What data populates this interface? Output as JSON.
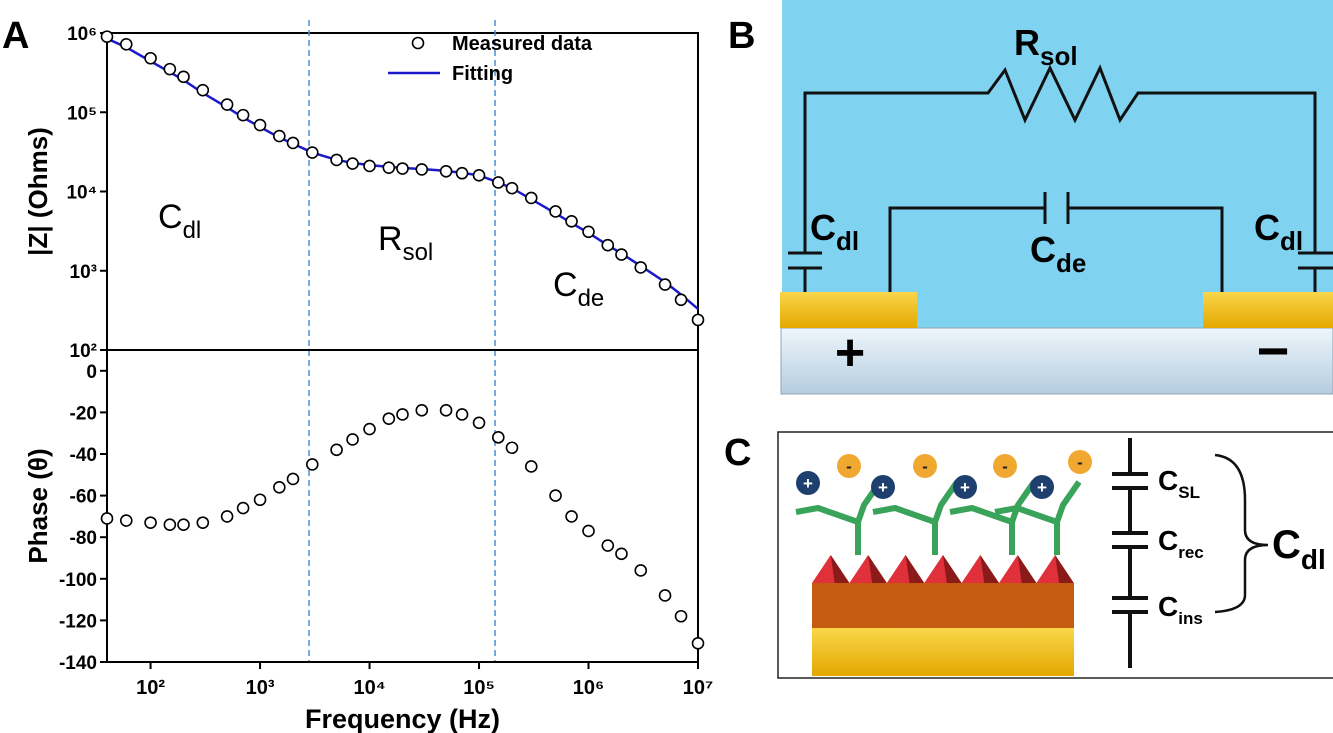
{
  "panel_labels": [
    "A",
    "B",
    "C"
  ],
  "chart_data": [
    {
      "type": "line",
      "xscale": "log",
      "yscale": "log",
      "ylabel": "|Z| (Ohms)",
      "xlim": [
        40,
        10000000
      ],
      "ylim": [
        100,
        1000000
      ],
      "yticks": [
        {
          "value": 100,
          "label": "10²"
        },
        {
          "value": 1000,
          "label": "10³"
        },
        {
          "value": 10000,
          "label": "10⁴"
        },
        {
          "value": 100000,
          "label": "10⁵"
        },
        {
          "value": 1000000,
          "label": "10⁶"
        }
      ],
      "x": [
        40,
        60,
        100,
        150,
        200,
        300,
        500,
        700,
        1000,
        1500,
        2000,
        3000,
        5000,
        7000,
        10000,
        15000,
        20000,
        30000,
        50000,
        70000,
        100000,
        150000,
        200000,
        300000,
        500000,
        700000,
        1000000,
        1500000,
        2000000,
        3000000,
        5000000,
        7000000,
        10000000
      ],
      "series": [
        {
          "name": "Measured data",
          "mode": "markers",
          "color": "#000000",
          "values": [
            900000,
            720000,
            480000,
            350000,
            280000,
            190000,
            125000,
            92000,
            69000,
            50000,
            41000,
            31000,
            25000,
            22500,
            21000,
            20000,
            19500,
            19000,
            18000,
            17000,
            16000,
            13000,
            11000,
            8300,
            5600,
            4200,
            3100,
            2100,
            1600,
            1100,
            670,
            430,
            240
          ]
        },
        {
          "name": "Fitting",
          "mode": "lines",
          "color": "#1a1acc",
          "values": [
            850000,
            660000,
            440000,
            320000,
            255000,
            175000,
            115000,
            86000,
            65000,
            48000,
            40000,
            31000,
            25000,
            23000,
            21500,
            20500,
            19800,
            19200,
            18200,
            17200,
            16000,
            13000,
            11000,
            8000,
            5300,
            4000,
            3000,
            2100,
            1650,
            1150,
            720,
            500,
            330
          ]
        }
      ],
      "vlines": [
        2800,
        140000
      ],
      "annotations": [
        {
          "text": "C",
          "sub": "dl"
        },
        {
          "text": "R",
          "sub": "sol"
        },
        {
          "text": "C",
          "sub": "de"
        }
      ]
    },
    {
      "type": "line",
      "xscale": "log",
      "xlabel": "Frequency (Hz)",
      "ylabel": "Phase (θ)",
      "xlim": [
        40,
        10000000
      ],
      "ylim": [
        -140,
        10
      ],
      "xticks": [
        {
          "value": 100,
          "label": "10²"
        },
        {
          "value": 1000,
          "label": "10³"
        },
        {
          "value": 10000,
          "label": "10⁴"
        },
        {
          "value": 100000,
          "label": "10⁵"
        },
        {
          "value": 1000000,
          "label": "10⁶"
        },
        {
          "value": 10000000,
          "label": "10⁷"
        }
      ],
      "yticks": [
        0,
        -20,
        -40,
        -60,
        -80,
        -100,
        -120,
        -140
      ],
      "x": [
        40,
        60,
        100,
        150,
        200,
        300,
        500,
        700,
        1000,
        1500,
        2000,
        3000,
        5000,
        7000,
        10000,
        15000,
        20000,
        30000,
        50000,
        70000,
        100000,
        150000,
        200000,
        300000,
        500000,
        700000,
        1000000,
        1500000,
        2000000,
        3000000,
        5000000,
        7000000,
        10000000
      ],
      "series": [
        {
          "name": "Measured data",
          "mode": "markers",
          "color": "#000000",
          "values": [
            -71,
            -72,
            -73,
            -74,
            -74,
            -73,
            -70,
            -66,
            -62,
            -56,
            -52,
            -45,
            -38,
            -33,
            -28,
            -23,
            -21,
            -19,
            -19,
            -21,
            -25,
            -32,
            -37,
            -46,
            -60,
            -70,
            -77,
            -84,
            -88,
            -96,
            -108,
            -118,
            -131
          ]
        }
      ]
    }
  ],
  "circuit_b": {
    "resistor": {
      "text": "R",
      "sub": "sol"
    },
    "cdl_left": {
      "text": "C",
      "sub": "dl"
    },
    "cde": {
      "text": "C",
      "sub": "de"
    },
    "cdl_right": {
      "text": "C",
      "sub": "dl"
    },
    "anode": "+",
    "cathode": "−"
  },
  "circuit_c": {
    "ion_positive": "+",
    "ion_negative": "-",
    "c_sl": {
      "text": "C",
      "sub": "SL"
    },
    "c_rec": {
      "text": "C",
      "sub": "rec"
    },
    "c_ins": {
      "text": "C",
      "sub": "ins"
    },
    "c_dl": {
      "text": "C",
      "sub": "dl"
    }
  }
}
